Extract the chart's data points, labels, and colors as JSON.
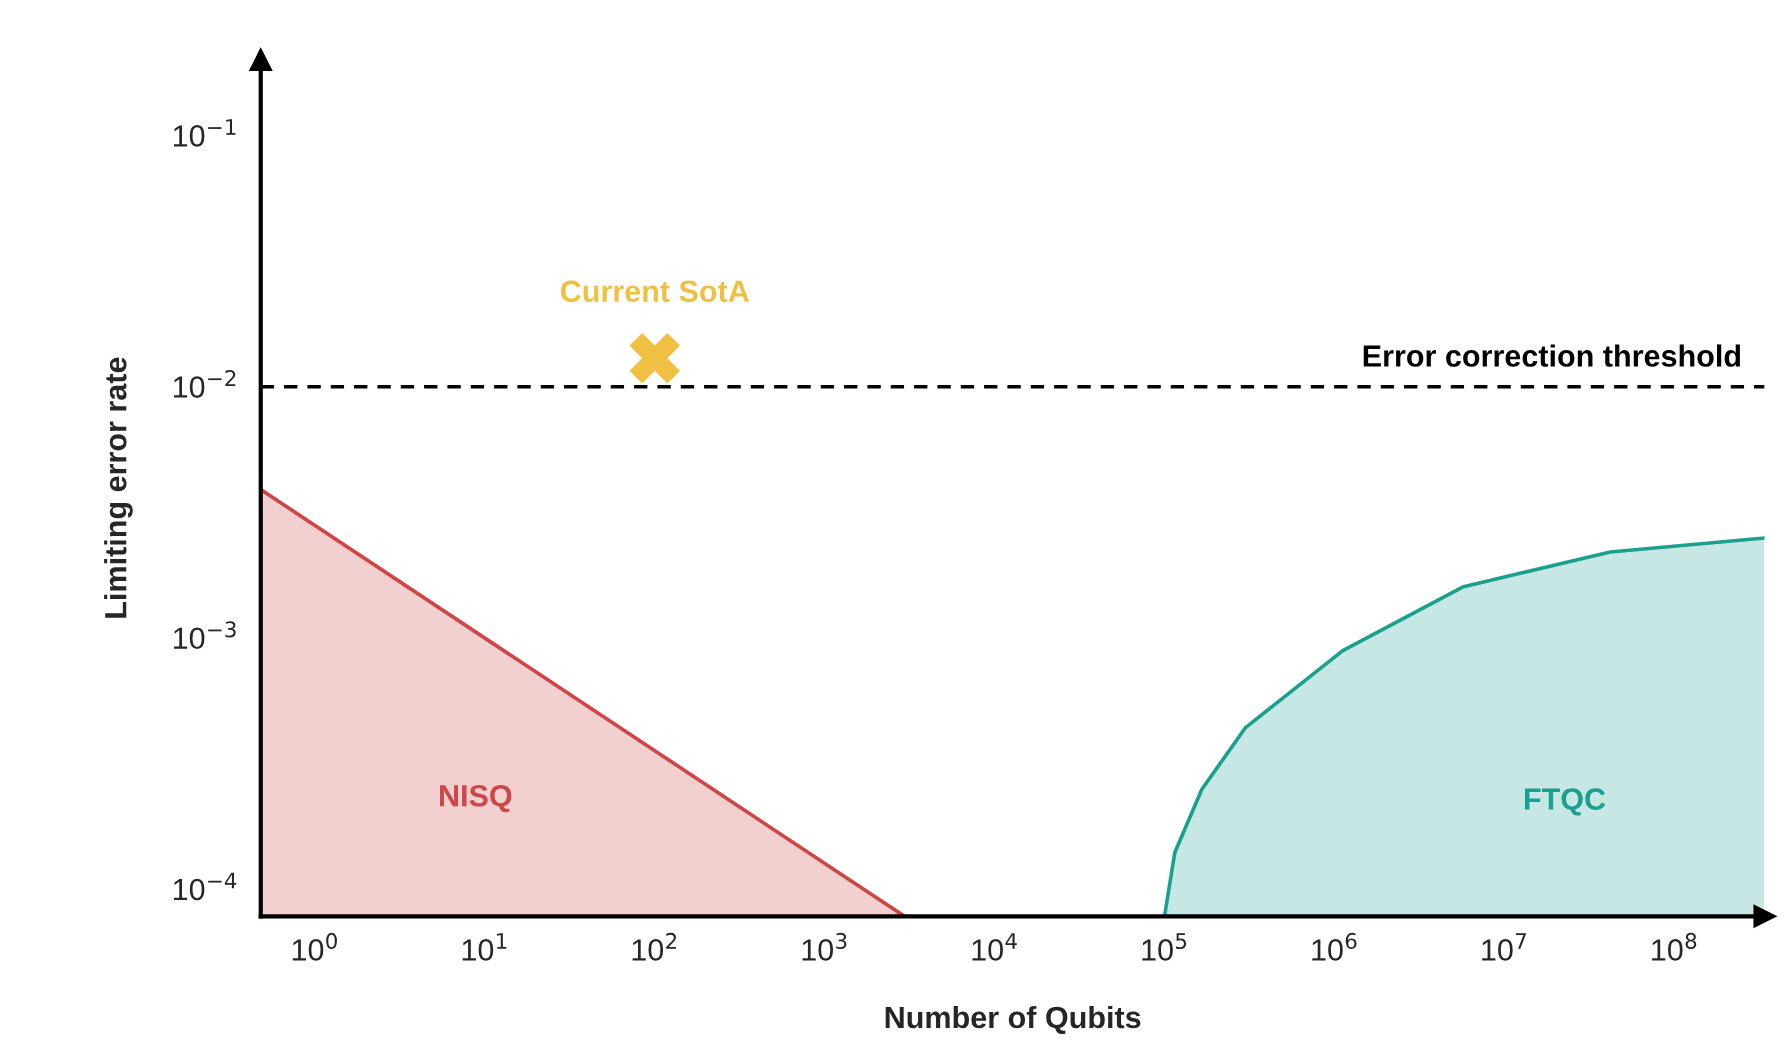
{
  "chart_data": {
    "type": "area",
    "xlabel": "Number of Qubits",
    "ylabel": "Limiting error rate",
    "log": "xy",
    "grid": false,
    "xlim": [
      0.48,
      340000000
    ],
    "ylim": [
      7.8e-05,
      0.2
    ],
    "xticks": [
      {
        "value": 1,
        "label": "10$^{0}$"
      },
      {
        "value": 10,
        "label": "10$^{1}$"
      },
      {
        "value": 100,
        "label": "10$^{2}$"
      },
      {
        "value": 1000,
        "label": "10$^{3}$"
      },
      {
        "value": 10000,
        "label": "10$^{4}$"
      },
      {
        "value": 100000,
        "label": "10$^{5}$"
      },
      {
        "value": 1000000,
        "label": "10$^{6}$"
      },
      {
        "value": 10000000,
        "label": "10$^{7}$"
      },
      {
        "value": 100000000,
        "label": "10$^{8}$"
      }
    ],
    "yticks": [
      {
        "value": 0.0001,
        "label": "10$^{−4}$"
      },
      {
        "value": 0.001,
        "label": "10$^{−3}$"
      },
      {
        "value": 0.01,
        "label": "10$^{−2}$"
      },
      {
        "value": 0.1,
        "label": "10$^{−1}$"
      }
    ],
    "series": [
      {
        "name": "NISQ",
        "color": "#d04545",
        "x": [
          0.48,
          2950
        ],
        "values": [
          0.0039,
          7.8e-05
        ]
      },
      {
        "name": "FTQC",
        "color": "#1aa08f",
        "x": [
          100000,
          115000,
          166000,
          300000,
          1120000,
          5750000,
          42000000,
          340000000
        ],
        "values": [
          7.8e-05,
          0.00014,
          0.00025,
          0.00044,
          0.00089,
          0.0016,
          0.0022,
          0.0025
        ]
      },
      {
        "name": "Current SotA",
        "type": "scatter",
        "marker": "cross",
        "color": "#f0c043",
        "x": [
          100
        ],
        "values": [
          0.013
        ]
      }
    ],
    "ref_lines": [
      {
        "axis": "y",
        "value": 0.01,
        "label": "Error correction threshold",
        "color": "#000000",
        "line_style": "dashed"
      }
    ]
  }
}
